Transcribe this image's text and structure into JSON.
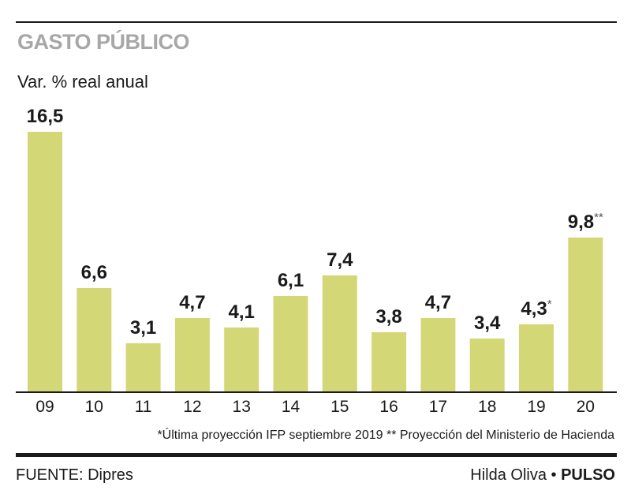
{
  "header": {
    "title": "GASTO PÚBLICO",
    "subtitle": "Var. % real anual"
  },
  "colors": {
    "bar": "#d4d776",
    "axis": "#1a1a1a",
    "title": "#a7a7a7"
  },
  "chart_data": {
    "type": "bar",
    "title": "GASTO PÚBLICO",
    "ylabel": "Var. % real anual",
    "xlabel": "",
    "categories": [
      "09",
      "10",
      "11",
      "12",
      "13",
      "14",
      "15",
      "16",
      "17",
      "18",
      "19",
      "20"
    ],
    "values": [
      16.5,
      6.6,
      3.1,
      4.7,
      4.1,
      6.1,
      7.4,
      3.8,
      4.7,
      3.4,
      4.3,
      9.8
    ],
    "value_labels": [
      "16,5",
      "6,6",
      "3,1",
      "4,7",
      "4,1",
      "6,1",
      "7,4",
      "3,8",
      "4,7",
      "3,4",
      "4,3",
      "9,8"
    ],
    "label_marks": [
      "",
      "",
      "",
      "",
      "",
      "",
      "",
      "",
      "",
      "",
      "*",
      "**"
    ],
    "ylim": [
      0,
      16.5
    ],
    "grid": false
  },
  "footnote": "*Última proyección IFP septiembre 2019   ** Proyección del Ministerio de Hacienda",
  "footer": {
    "source": "FUENTE: Dipres",
    "author": "Hilda Oliva",
    "separator": "•",
    "brand": "PULSO"
  }
}
